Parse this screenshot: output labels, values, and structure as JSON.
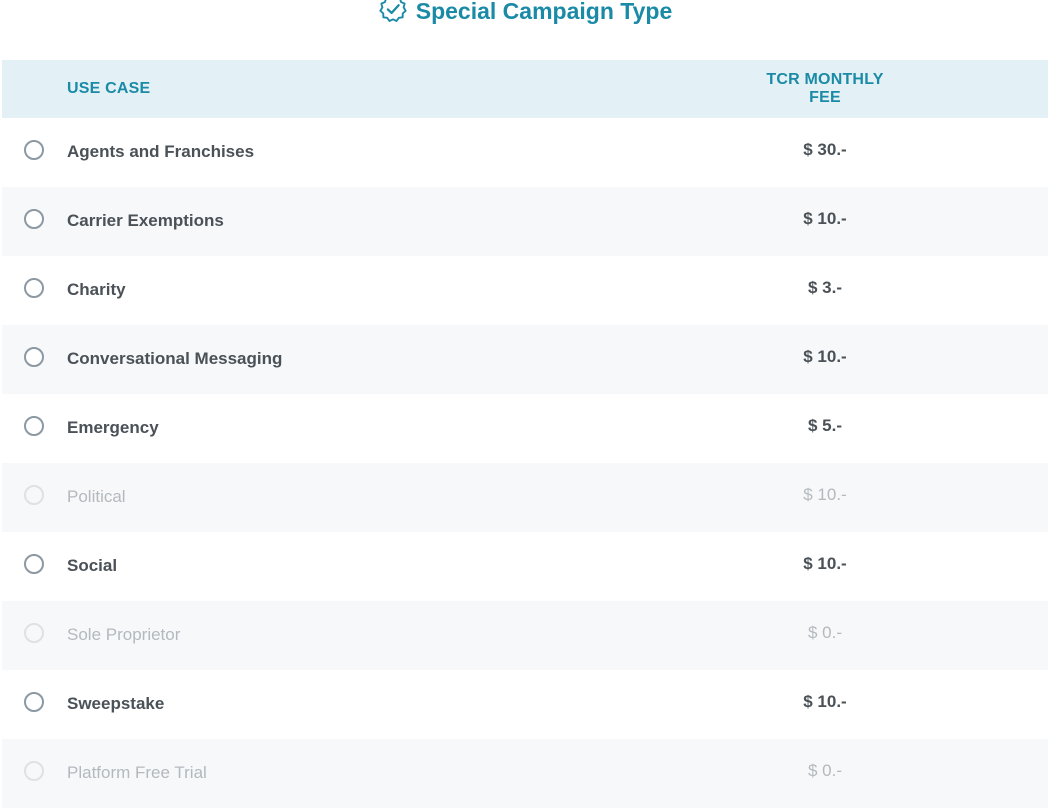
{
  "header": {
    "title": "Special Campaign Type",
    "icon": "badge-check-icon",
    "accent_color": "#1a8aa6"
  },
  "table": {
    "columns": {
      "use_case": "USE CASE",
      "fee": "TCR MONTHLY FEE"
    },
    "rows": [
      {
        "label": "Agents and Franchises",
        "fee": "$ 30.-",
        "enabled": true
      },
      {
        "label": "Carrier Exemptions",
        "fee": "$ 10.-",
        "enabled": true
      },
      {
        "label": "Charity",
        "fee": "$ 3.-",
        "enabled": true
      },
      {
        "label": "Conversational Messaging",
        "fee": "$ 10.-",
        "enabled": true
      },
      {
        "label": "Emergency",
        "fee": "$ 5.-",
        "enabled": true
      },
      {
        "label": "Political",
        "fee": "$ 10.-",
        "enabled": false
      },
      {
        "label": "Social",
        "fee": "$ 10.-",
        "enabled": true
      },
      {
        "label": "Sole Proprietor",
        "fee": "$ 0.-",
        "enabled": false
      },
      {
        "label": "Sweepstake",
        "fee": "$ 10.-",
        "enabled": true
      },
      {
        "label": "Platform Free Trial",
        "fee": "$ 0.-",
        "enabled": false
      }
    ]
  }
}
